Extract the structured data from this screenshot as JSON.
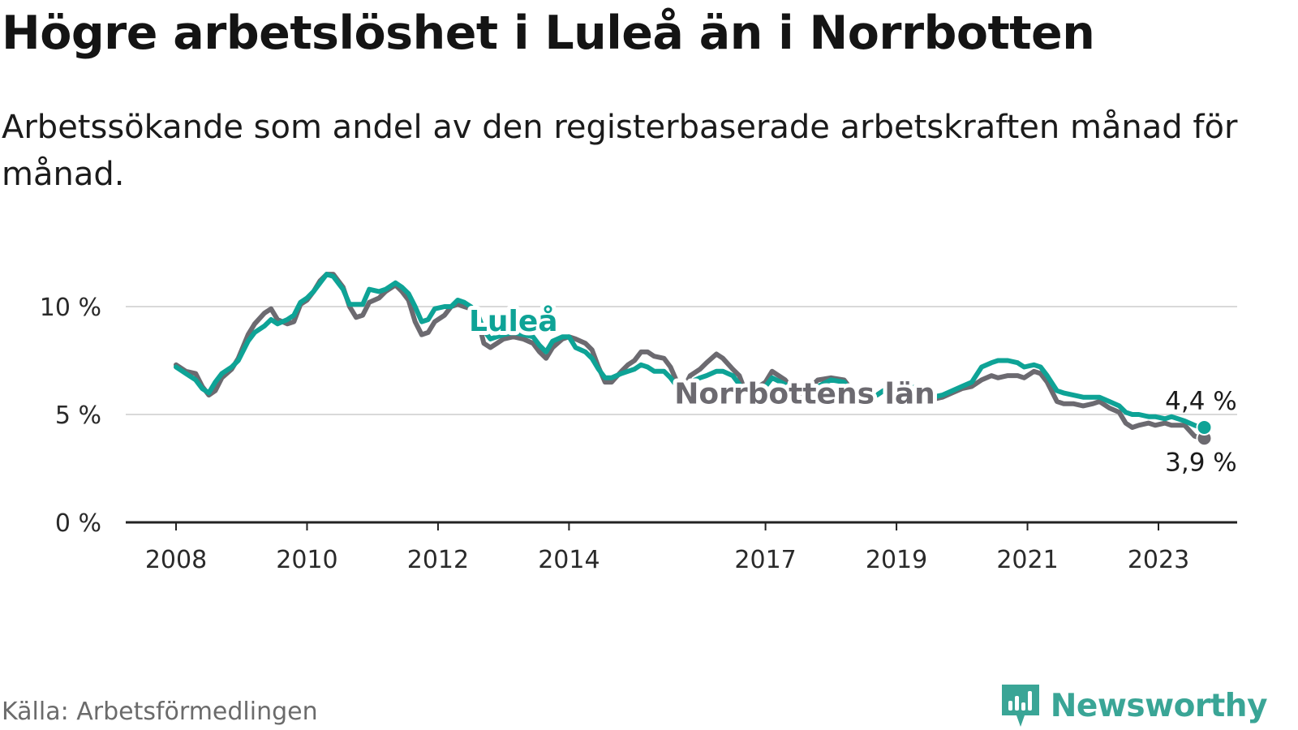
{
  "title": "Högre arbetslöshet i Luleå än i Norrbotten",
  "subtitle": "Arbetssökande som andel av den registerbaserade arbetskraften månad för månad.",
  "source": "Källa: Arbetsförmedlingen",
  "brand": {
    "name": "Newsworthy",
    "icon": "bar-chart-logo-icon"
  },
  "colors": {
    "lulea": "#0ea396",
    "norrbotten": "#6c6a70",
    "grid": "#d9d9d9",
    "axis": "#222222",
    "brand": "#3aa596"
  },
  "chart_data": {
    "type": "line",
    "title": "Högre arbetslöshet i Luleå än i Norrbotten",
    "xlabel": "",
    "ylabel": "",
    "xlim": [
      2008.0,
      2024.25
    ],
    "ylim": [
      0,
      10
    ],
    "y_ticks": [
      0,
      5,
      10
    ],
    "y_tick_labels": [
      "0 %",
      "5 %",
      "10 %"
    ],
    "x_ticks": [
      2008,
      2010,
      2012,
      2014,
      2017,
      2019,
      2021,
      2023
    ],
    "x_tick_labels": [
      "2008",
      "2010",
      "2012",
      "2014",
      "2017",
      "2019",
      "2021",
      "2023"
    ],
    "grid": true,
    "series": [
      {
        "name": "Norrbottens län",
        "end_label": "3,9 %",
        "points": [
          [
            2008.0,
            7.3
          ],
          [
            2008.15,
            7.0
          ],
          [
            2008.3,
            6.9
          ],
          [
            2008.4,
            6.3
          ],
          [
            2008.5,
            5.9
          ],
          [
            2008.6,
            6.1
          ],
          [
            2008.7,
            6.7
          ],
          [
            2008.85,
            7.1
          ],
          [
            2008.95,
            7.6
          ],
          [
            2009.1,
            8.7
          ],
          [
            2009.2,
            9.2
          ],
          [
            2009.35,
            9.7
          ],
          [
            2009.45,
            9.9
          ],
          [
            2009.55,
            9.4
          ],
          [
            2009.7,
            9.2
          ],
          [
            2009.8,
            9.3
          ],
          [
            2009.9,
            10.1
          ],
          [
            2010.0,
            10.3
          ],
          [
            2010.1,
            10.7
          ],
          [
            2010.2,
            11.2
          ],
          [
            2010.3,
            11.5
          ],
          [
            2010.4,
            11.5
          ],
          [
            2010.55,
            10.9
          ],
          [
            2010.65,
            10.0
          ],
          [
            2010.75,
            9.5
          ],
          [
            2010.85,
            9.6
          ],
          [
            2010.95,
            10.2
          ],
          [
            2011.1,
            10.4
          ],
          [
            2011.2,
            10.7
          ],
          [
            2011.35,
            11.0
          ],
          [
            2011.45,
            10.7
          ],
          [
            2011.55,
            10.3
          ],
          [
            2011.65,
            9.3
          ],
          [
            2011.75,
            8.7
          ],
          [
            2011.85,
            8.8
          ],
          [
            2011.95,
            9.3
          ],
          [
            2012.1,
            9.6
          ],
          [
            2012.2,
            10.0
          ],
          [
            2012.3,
            10.1
          ],
          [
            2012.4,
            10.0
          ],
          [
            2012.5,
            9.9
          ],
          [
            2012.6,
            9.5
          ],
          [
            2012.7,
            8.3
          ],
          [
            2012.8,
            8.1
          ],
          [
            2012.9,
            8.3
          ],
          [
            2013.0,
            8.5
          ],
          [
            2013.15,
            8.6
          ],
          [
            2013.3,
            8.5
          ],
          [
            2013.45,
            8.3
          ],
          [
            2013.55,
            7.9
          ],
          [
            2013.65,
            7.6
          ],
          [
            2013.75,
            8.1
          ],
          [
            2013.9,
            8.5
          ],
          [
            2014.0,
            8.6
          ],
          [
            2014.1,
            8.5
          ],
          [
            2014.25,
            8.3
          ],
          [
            2014.35,
            8.0
          ],
          [
            2014.45,
            7.2
          ],
          [
            2014.55,
            6.5
          ],
          [
            2014.65,
            6.5
          ],
          [
            2014.8,
            7.0
          ],
          [
            2014.9,
            7.3
          ],
          [
            2015.0,
            7.5
          ],
          [
            2015.1,
            7.9
          ],
          [
            2015.2,
            7.9
          ],
          [
            2015.3,
            7.7
          ],
          [
            2015.45,
            7.6
          ],
          [
            2015.55,
            7.2
          ],
          [
            2015.65,
            6.5
          ],
          [
            2015.75,
            6.2
          ],
          [
            2015.85,
            6.8
          ],
          [
            2016.0,
            7.1
          ],
          [
            2016.1,
            7.4
          ],
          [
            2016.25,
            7.8
          ],
          [
            2016.35,
            7.6
          ],
          [
            2016.5,
            7.1
          ],
          [
            2016.6,
            6.8
          ],
          [
            2016.7,
            6.0
          ],
          [
            2016.8,
            6.1
          ],
          [
            2017.0,
            6.5
          ],
          [
            2017.1,
            7.0
          ],
          [
            2017.3,
            6.6
          ],
          [
            2017.45,
            6.0
          ],
          [
            2017.55,
            5.9
          ],
          [
            2017.7,
            6.3
          ],
          [
            2017.8,
            6.6
          ],
          [
            2018.0,
            6.7
          ],
          [
            2018.2,
            6.6
          ],
          [
            2018.3,
            6.2
          ],
          [
            2018.45,
            5.8
          ],
          [
            2018.55,
            5.7
          ],
          [
            2018.7,
            5.9
          ],
          [
            2018.8,
            6.1
          ],
          [
            2019.0,
            6.3
          ],
          [
            2019.15,
            6.4
          ],
          [
            2019.3,
            6.2
          ],
          [
            2019.45,
            5.8
          ],
          [
            2019.55,
            5.7
          ],
          [
            2019.7,
            5.8
          ],
          [
            2019.85,
            6.0
          ],
          [
            2020.0,
            6.2
          ],
          [
            2020.15,
            6.3
          ],
          [
            2020.3,
            6.6
          ],
          [
            2020.45,
            6.8
          ],
          [
            2020.55,
            6.7
          ],
          [
            2020.7,
            6.8
          ],
          [
            2020.85,
            6.8
          ],
          [
            2020.95,
            6.7
          ],
          [
            2021.1,
            7.0
          ],
          [
            2021.2,
            6.9
          ],
          [
            2021.3,
            6.5
          ],
          [
            2021.45,
            5.6
          ],
          [
            2021.55,
            5.5
          ],
          [
            2021.7,
            5.5
          ],
          [
            2021.85,
            5.4
          ],
          [
            2022.0,
            5.5
          ],
          [
            2022.1,
            5.6
          ],
          [
            2022.25,
            5.3
          ],
          [
            2022.4,
            5.1
          ],
          [
            2022.5,
            4.6
          ],
          [
            2022.6,
            4.4
          ],
          [
            2022.7,
            4.5
          ],
          [
            2022.85,
            4.6
          ],
          [
            2022.95,
            4.5
          ],
          [
            2023.1,
            4.6
          ],
          [
            2023.2,
            4.5
          ],
          [
            2023.4,
            4.5
          ],
          [
            2023.55,
            4.0
          ],
          [
            2023.65,
            3.9
          ]
        ]
      },
      {
        "name": "Luleå",
        "end_label": "4,4 %",
        "points": [
          [
            2008.0,
            7.2
          ],
          [
            2008.15,
            6.9
          ],
          [
            2008.3,
            6.6
          ],
          [
            2008.4,
            6.2
          ],
          [
            2008.5,
            6.0
          ],
          [
            2008.6,
            6.5
          ],
          [
            2008.7,
            6.9
          ],
          [
            2008.85,
            7.2
          ],
          [
            2008.95,
            7.5
          ],
          [
            2009.1,
            8.4
          ],
          [
            2009.2,
            8.8
          ],
          [
            2009.35,
            9.1
          ],
          [
            2009.45,
            9.4
          ],
          [
            2009.55,
            9.2
          ],
          [
            2009.7,
            9.4
          ],
          [
            2009.8,
            9.6
          ],
          [
            2009.9,
            10.2
          ],
          [
            2010.0,
            10.4
          ],
          [
            2010.1,
            10.7
          ],
          [
            2010.2,
            11.1
          ],
          [
            2010.3,
            11.5
          ],
          [
            2010.4,
            11.4
          ],
          [
            2010.55,
            10.8
          ],
          [
            2010.65,
            10.1
          ],
          [
            2010.75,
            10.1
          ],
          [
            2010.85,
            10.1
          ],
          [
            2010.95,
            10.8
          ],
          [
            2011.1,
            10.7
          ],
          [
            2011.2,
            10.8
          ],
          [
            2011.35,
            11.1
          ],
          [
            2011.45,
            10.9
          ],
          [
            2011.55,
            10.6
          ],
          [
            2011.65,
            10.0
          ],
          [
            2011.75,
            9.3
          ],
          [
            2011.85,
            9.4
          ],
          [
            2011.95,
            9.9
          ],
          [
            2012.1,
            10.0
          ],
          [
            2012.2,
            10.0
          ],
          [
            2012.3,
            10.3
          ],
          [
            2012.4,
            10.2
          ],
          [
            2012.5,
            10.0
          ],
          [
            2012.6,
            9.7
          ],
          [
            2012.7,
            8.9
          ],
          [
            2012.8,
            8.5
          ],
          [
            2012.9,
            8.6
          ],
          [
            2013.0,
            8.7
          ],
          [
            2013.15,
            8.8
          ],
          [
            2013.3,
            8.7
          ],
          [
            2013.45,
            8.6
          ],
          [
            2013.55,
            8.2
          ],
          [
            2013.65,
            7.9
          ],
          [
            2013.75,
            8.4
          ],
          [
            2013.9,
            8.6
          ],
          [
            2014.0,
            8.6
          ],
          [
            2014.1,
            8.1
          ],
          [
            2014.25,
            7.9
          ],
          [
            2014.35,
            7.6
          ],
          [
            2014.45,
            7.1
          ],
          [
            2014.55,
            6.7
          ],
          [
            2014.65,
            6.7
          ],
          [
            2014.8,
            6.9
          ],
          [
            2014.9,
            7.0
          ],
          [
            2015.0,
            7.1
          ],
          [
            2015.1,
            7.3
          ],
          [
            2015.2,
            7.2
          ],
          [
            2015.3,
            7.0
          ],
          [
            2015.45,
            7.0
          ],
          [
            2015.55,
            6.7
          ],
          [
            2015.65,
            6.3
          ],
          [
            2015.75,
            6.2
          ],
          [
            2015.85,
            6.5
          ],
          [
            2016.0,
            6.7
          ],
          [
            2016.1,
            6.8
          ],
          [
            2016.25,
            7.0
          ],
          [
            2016.35,
            7.0
          ],
          [
            2016.5,
            6.8
          ],
          [
            2016.6,
            6.4
          ],
          [
            2016.7,
            6.0
          ],
          [
            2016.8,
            6.0
          ],
          [
            2017.0,
            6.3
          ],
          [
            2017.1,
            6.7
          ],
          [
            2017.3,
            6.4
          ],
          [
            2017.45,
            5.9
          ],
          [
            2017.55,
            5.7
          ],
          [
            2017.7,
            6.0
          ],
          [
            2017.8,
            6.3
          ],
          [
            2018.0,
            6.6
          ],
          [
            2018.2,
            6.5
          ],
          [
            2018.3,
            6.1
          ],
          [
            2018.45,
            5.8
          ],
          [
            2018.55,
            5.8
          ],
          [
            2018.7,
            5.9
          ],
          [
            2018.8,
            6.1
          ],
          [
            2019.0,
            6.3
          ],
          [
            2019.15,
            6.4
          ],
          [
            2019.3,
            6.2
          ],
          [
            2019.45,
            5.9
          ],
          [
            2019.55,
            5.8
          ],
          [
            2019.7,
            5.9
          ],
          [
            2019.85,
            6.1
          ],
          [
            2020.0,
            6.3
          ],
          [
            2020.15,
            6.5
          ],
          [
            2020.3,
            7.2
          ],
          [
            2020.45,
            7.4
          ],
          [
            2020.55,
            7.5
          ],
          [
            2020.7,
            7.5
          ],
          [
            2020.85,
            7.4
          ],
          [
            2020.95,
            7.2
          ],
          [
            2021.1,
            7.3
          ],
          [
            2021.2,
            7.2
          ],
          [
            2021.3,
            6.8
          ],
          [
            2021.45,
            6.1
          ],
          [
            2021.55,
            6.0
          ],
          [
            2021.7,
            5.9
          ],
          [
            2021.85,
            5.8
          ],
          [
            2022.0,
            5.8
          ],
          [
            2022.1,
            5.8
          ],
          [
            2022.25,
            5.6
          ],
          [
            2022.4,
            5.4
          ],
          [
            2022.5,
            5.1
          ],
          [
            2022.6,
            5.0
          ],
          [
            2022.7,
            5.0
          ],
          [
            2022.85,
            4.9
          ],
          [
            2022.95,
            4.9
          ],
          [
            2023.1,
            4.8
          ],
          [
            2023.2,
            4.9
          ],
          [
            2023.4,
            4.7
          ],
          [
            2023.55,
            4.5
          ],
          [
            2023.65,
            4.4
          ]
        ]
      }
    ],
    "annotations": [
      {
        "text": "Luleå",
        "series": "Luleå",
        "at_x": 2013.15
      },
      {
        "text": "Norrbottens län",
        "series": "Norrbottens län",
        "at_x": 2017.6
      }
    ]
  }
}
